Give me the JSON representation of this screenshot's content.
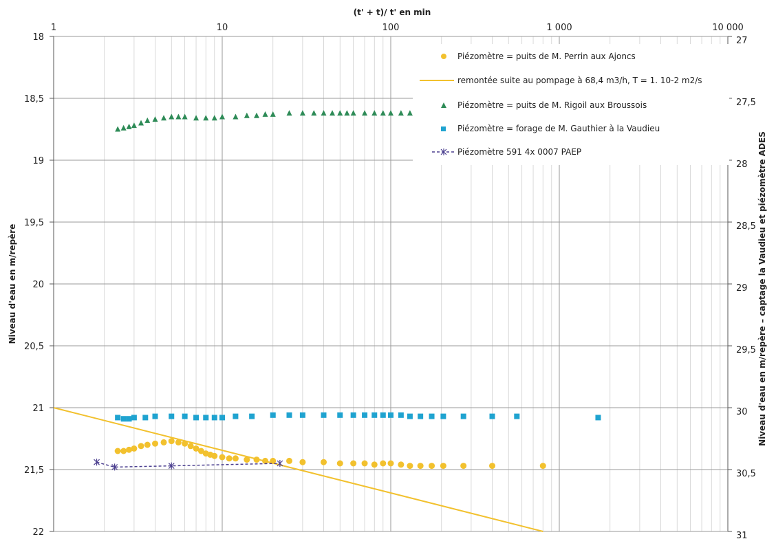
{
  "chart_data": {
    "type": "scatter",
    "title": "",
    "xlabel": "(t' + t)/ t' en min",
    "ylabel": "Niveau d'eau en m/repère",
    "y2label": "Niveau d'eau en m/repère – captage la Vaudieu et piézomètre ADES",
    "xscale": "log",
    "xlim": [
      1,
      10000
    ],
    "ylim": [
      18,
      22
    ],
    "y_inverted": true,
    "y2lim": [
      27,
      31
    ],
    "x_tick_values": [
      1,
      10,
      100,
      1000,
      10000
    ],
    "x_tick_labels": [
      "1",
      "10",
      "100",
      "1 000",
      "10 000"
    ],
    "y_tick_values": [
      18,
      18.5,
      19,
      19.5,
      20,
      20.5,
      21,
      21.5,
      22
    ],
    "y_tick_labels": [
      "18",
      "18,5",
      "19",
      "19,5",
      "20",
      "20,5",
      "21",
      "21,5",
      "22"
    ],
    "y2_tick_values": [
      27,
      27.5,
      28,
      28.5,
      29,
      29.5,
      30,
      30.5,
      31
    ],
    "y2_tick_labels": [
      "27",
      "27,5",
      "28",
      "28,5",
      "29",
      "29,5",
      "30",
      "30,5",
      "31"
    ],
    "grid": true,
    "legend_position": "top-right",
    "series": [
      {
        "name": "Piézomètre = puits de M. Perrin aux Ajoncs",
        "marker": "circle",
        "color": "#F2C12E",
        "axis": "left",
        "points": [
          [
            2.4,
            21.35
          ],
          [
            2.6,
            21.35
          ],
          [
            2.8,
            21.34
          ],
          [
            3,
            21.33
          ],
          [
            3.3,
            21.31
          ],
          [
            3.6,
            21.3
          ],
          [
            4,
            21.29
          ],
          [
            4.5,
            21.28
          ],
          [
            5,
            21.27
          ],
          [
            5.5,
            21.28
          ],
          [
            6,
            21.29
          ],
          [
            6.5,
            21.31
          ],
          [
            7,
            21.33
          ],
          [
            7.5,
            21.35
          ],
          [
            8,
            21.37
          ],
          [
            8.5,
            21.38
          ],
          [
            9,
            21.39
          ],
          [
            10,
            21.4
          ],
          [
            11,
            21.41
          ],
          [
            12,
            21.41
          ],
          [
            14,
            21.42
          ],
          [
            16,
            21.42
          ],
          [
            18,
            21.43
          ],
          [
            20,
            21.43
          ],
          [
            25,
            21.43
          ],
          [
            30,
            21.44
          ],
          [
            40,
            21.44
          ],
          [
            50,
            21.45
          ],
          [
            60,
            21.45
          ],
          [
            70,
            21.45
          ],
          [
            80,
            21.46
          ],
          [
            90,
            21.45
          ],
          [
            100,
            21.45
          ],
          [
            115,
            21.46
          ],
          [
            130,
            21.47
          ],
          [
            150,
            21.47
          ],
          [
            175,
            21.47
          ],
          [
            205,
            21.47
          ],
          [
            270,
            21.47
          ],
          [
            400,
            21.47
          ],
          [
            800,
            21.47
          ]
        ]
      },
      {
        "name": "remontée suite au pompage à 68,4 m3/h, T = 1. 10-2 m2/s",
        "marker": "line",
        "color": "#F2C12E",
        "axis": "left",
        "points": [
          [
            1,
            21.0
          ],
          [
            800,
            22.0
          ]
        ]
      },
      {
        "name": "Piézomètre = puits de M. Rigoil aux Broussois",
        "marker": "triangle",
        "color": "#2E8B57",
        "axis": "left",
        "points": [
          [
            2.4,
            18.75
          ],
          [
            2.6,
            18.74
          ],
          [
            2.8,
            18.73
          ],
          [
            3,
            18.72
          ],
          [
            3.3,
            18.7
          ],
          [
            3.6,
            18.68
          ],
          [
            4,
            18.67
          ],
          [
            4.5,
            18.66
          ],
          [
            5,
            18.65
          ],
          [
            5.5,
            18.65
          ],
          [
            6,
            18.65
          ],
          [
            7,
            18.66
          ],
          [
            8,
            18.66
          ],
          [
            9,
            18.66
          ],
          [
            10,
            18.65
          ],
          [
            12,
            18.65
          ],
          [
            14,
            18.64
          ],
          [
            16,
            18.64
          ],
          [
            18,
            18.63
          ],
          [
            20,
            18.63
          ],
          [
            25,
            18.62
          ],
          [
            30,
            18.62
          ],
          [
            35,
            18.62
          ],
          [
            40,
            18.62
          ],
          [
            45,
            18.62
          ],
          [
            50,
            18.62
          ],
          [
            55,
            18.62
          ],
          [
            60,
            18.62
          ],
          [
            70,
            18.62
          ],
          [
            80,
            18.62
          ],
          [
            90,
            18.62
          ],
          [
            100,
            18.62
          ],
          [
            115,
            18.62
          ],
          [
            130,
            18.62
          ]
        ]
      },
      {
        "name": "Piézomètre = forage de M. Gauthier à la Vaudieu",
        "marker": "square",
        "color": "#1FA3D0",
        "axis": "left",
        "points": [
          [
            2.4,
            21.08
          ],
          [
            2.6,
            21.09
          ],
          [
            2.8,
            21.09
          ],
          [
            3,
            21.08
          ],
          [
            3.5,
            21.08
          ],
          [
            4,
            21.07
          ],
          [
            5,
            21.07
          ],
          [
            6,
            21.07
          ],
          [
            7,
            21.08
          ],
          [
            8,
            21.08
          ],
          [
            9,
            21.08
          ],
          [
            10,
            21.08
          ],
          [
            12,
            21.07
          ],
          [
            15,
            21.07
          ],
          [
            20,
            21.06
          ],
          [
            25,
            21.06
          ],
          [
            30,
            21.06
          ],
          [
            40,
            21.06
          ],
          [
            50,
            21.06
          ],
          [
            60,
            21.06
          ],
          [
            70,
            21.06
          ],
          [
            80,
            21.06
          ],
          [
            90,
            21.06
          ],
          [
            100,
            21.06
          ],
          [
            115,
            21.06
          ],
          [
            130,
            21.07
          ],
          [
            150,
            21.07
          ],
          [
            175,
            21.07
          ],
          [
            205,
            21.07
          ],
          [
            270,
            21.07
          ],
          [
            400,
            21.07
          ],
          [
            560,
            21.07
          ],
          [
            1700,
            21.08
          ]
        ]
      },
      {
        "name": "Piézomètre 591 4x 0007 PAEP",
        "marker": "x-dashed",
        "color": "#4B3F8F",
        "axis": "left",
        "points": [
          [
            1.8,
            21.44
          ],
          [
            2.3,
            21.48
          ],
          [
            5,
            21.47
          ],
          [
            22,
            21.45
          ]
        ]
      }
    ]
  }
}
